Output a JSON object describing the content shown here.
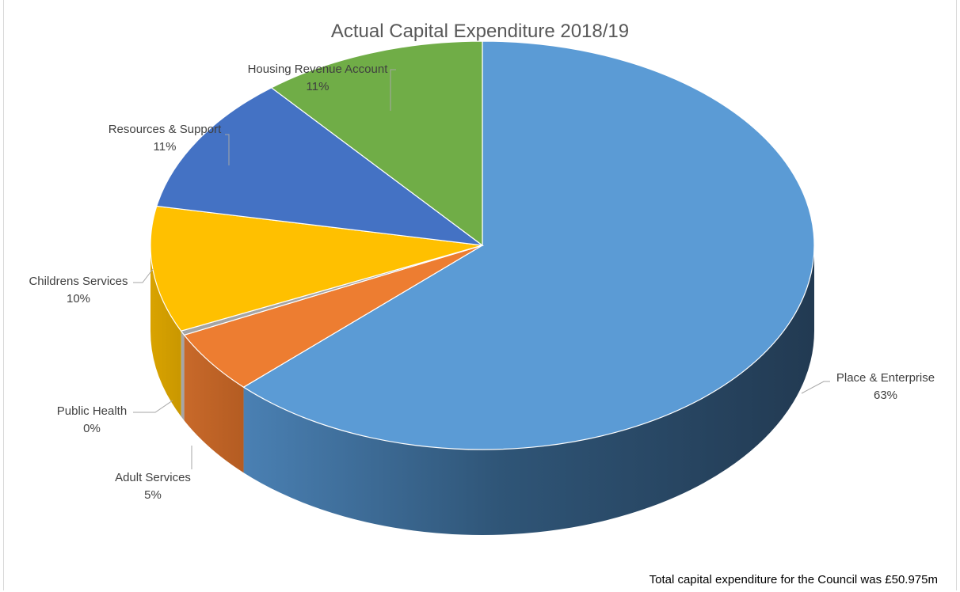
{
  "chart_data": {
    "type": "pie",
    "title": "Actual Capital Expenditure 2018/19",
    "categories": [
      "Place & Enterprise",
      "Adult Services",
      "Public Health",
      "Childrens Services",
      "Resources & Support",
      "Housing Revenue Account"
    ],
    "values": [
      63,
      5,
      0,
      10,
      11,
      11
    ],
    "value_labels": [
      "63%",
      "5%",
      "0%",
      "10%",
      "11%",
      "11%"
    ],
    "colors": {
      "Place & Enterprise": "#5b9bd5",
      "Adult Services": "#ed7d31",
      "Public Health": "#a5a5a5",
      "Childrens Services": "#ffc000",
      "Resources & Support": "#4472c4",
      "Housing Revenue Account": "#70ad47"
    },
    "style": "3d-pie"
  },
  "footnote": "Total capital expenditure for the Council was £50.975m"
}
